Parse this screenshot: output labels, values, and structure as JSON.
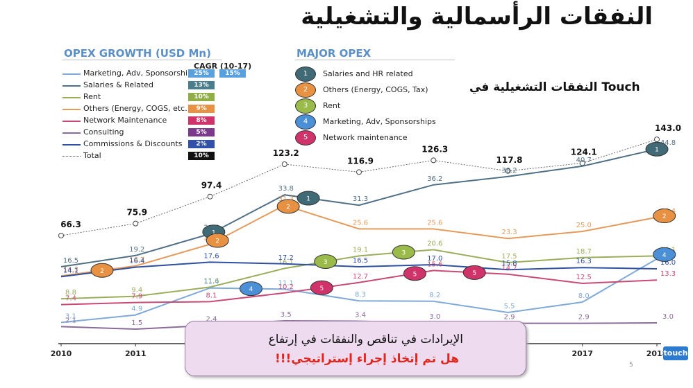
{
  "header": {
    "title": "النفقات الرأسمالية والتشغيلية",
    "subtitle": "النفقات التشغيلية في Touch",
    "section_left": "OPEX GROWTH (USD Mn)",
    "section_right": "MAJOR OPEX",
    "cagr_header": "CAGR  (10-17)"
  },
  "colors": {
    "marketing": "#7fa9d6",
    "salaries": "#4f6f85",
    "rent": "#9aad5a",
    "others": "#e59a5c",
    "network": "#c94a72",
    "consulting": "#8a6a9a",
    "commissions": "#2f4fa0",
    "total": "#666666"
  },
  "legend": [
    {
      "label": "Marketing, Adv, Sponsorships",
      "cagr": "25%",
      "cagr2": "15%",
      "color": "#7fa9d6",
      "box": "#5aa0de",
      "box2": "#5aa0de",
      "dash": false
    },
    {
      "label": "Salaries & Related",
      "cagr": "13%",
      "color": "#4f6f85",
      "box": "#4a7e8c",
      "dash": false
    },
    {
      "label": "Rent",
      "cagr": "10%",
      "color": "#9aad5a",
      "box": "#8fae45",
      "dash": false
    },
    {
      "label": "Others (Energy, COGS, etc.)",
      "cagr": "9%",
      "color": "#e59a5c",
      "box": "#e89142",
      "dash": false
    },
    {
      "label": "Network Maintenance",
      "cagr": "8%",
      "color": "#c94a72",
      "box": "#d0326a",
      "dash": false
    },
    {
      "label": "Consulting",
      "cagr": "5%",
      "color": "#8a6a9a",
      "box": "#7c3a8c",
      "dash": false
    },
    {
      "label": "Commissions & Discounts",
      "cagr": "2%",
      "color": "#2f4fa0",
      "box": "#3150a8",
      "dash": false
    },
    {
      "label": "Total",
      "cagr": "10%",
      "color": "#555555",
      "box": "#111111",
      "dash": true
    }
  ],
  "major_opex": [
    {
      "num": "1",
      "label": "Salaries and HR related",
      "color": "#3f6a76"
    },
    {
      "num": "2",
      "label": "Others (Energy, COGS, Tax)",
      "color": "#e89142"
    },
    {
      "num": "3",
      "label": "Rent",
      "color": "#9aba4a"
    },
    {
      "num": "4",
      "label": "Marketing, Adv, Sponsorships",
      "color": "#4b8fd6"
    },
    {
      "num": "5",
      "label": "Network maintenance",
      "color": "#d0326a"
    }
  ],
  "callout": {
    "line1": "الإيرادات في تناقص والنفقات في إرتفاع",
    "line2": "هل تم إتخاذ إجراء إستراتيجي!!!"
  },
  "footer": {
    "logo": "touch",
    "page": "5"
  },
  "chart_data": {
    "type": "line",
    "x": [
      2010,
      2011,
      2012,
      2013,
      2014,
      2015,
      2016,
      2017,
      2018
    ],
    "x_tick_labels": [
      "2010",
      "2011",
      "",
      "",
      "",
      "",
      "",
      "2017",
      "2018"
    ],
    "series": [
      {
        "name": "Total",
        "key": "total",
        "values": [
          66.3,
          75.9,
          97.4,
          123.2,
          116.9,
          126.3,
          117.8,
          124.1,
          143.0
        ]
      },
      {
        "name": "Salaries & Related",
        "key": "salaries",
        "values": [
          16.5,
          19.2,
          24.4,
          33.8,
          31.3,
          36.2,
          38.2,
          40.7,
          44.8
        ]
      },
      {
        "name": "Others (Energy, COGS, etc.)",
        "key": "others",
        "values": [
          14.3,
          16.7,
          21.9,
          31.3,
          25.6,
          25.6,
          23.3,
          25.0,
          28.4
        ]
      },
      {
        "name": "Rent",
        "key": "rent",
        "values": [
          8.8,
          9.4,
          11.6,
          16.1,
          19.1,
          20.6,
          17.5,
          18.7,
          19.1
        ]
      },
      {
        "name": "Marketing, Adv, Sponsorships",
        "key": "marketing",
        "values": [
          3.1,
          4.9,
          11.4,
          11.1,
          8.3,
          8.2,
          5.5,
          8.0,
          18.4
        ]
      },
      {
        "name": "Commissions & Discounts",
        "key": "commissions",
        "values": [
          14.1,
          16.4,
          17.6,
          17.2,
          16.5,
          17.0,
          15.8,
          16.3,
          16.0
        ]
      },
      {
        "name": "Network Maintenance",
        "key": "network",
        "values": [
          7.4,
          7.9,
          8.1,
          10.2,
          12.7,
          15.6,
          14.7,
          12.5,
          13.3
        ]
      },
      {
        "name": "Consulting",
        "key": "consulting",
        "values": [
          2.1,
          1.5,
          2.4,
          3.5,
          3.4,
          3.0,
          2.9,
          2.9,
          3.0
        ]
      }
    ],
    "badges": [
      {
        "num": "1",
        "key": "salaries",
        "at": [
          2012.05,
          2013.32,
          2018.0
        ]
      },
      {
        "num": "2",
        "key": "others",
        "at": [
          2010.55,
          2012.1,
          2013.05,
          2018.1
        ]
      },
      {
        "num": "3",
        "key": "rent",
        "at": [
          2013.55,
          2014.6
        ]
      },
      {
        "num": "4",
        "key": "marketing",
        "at": [
          2012.55,
          2018.1
        ]
      },
      {
        "num": "5",
        "key": "network",
        "at": [
          2013.5,
          2014.75,
          2015.55
        ]
      }
    ]
  }
}
